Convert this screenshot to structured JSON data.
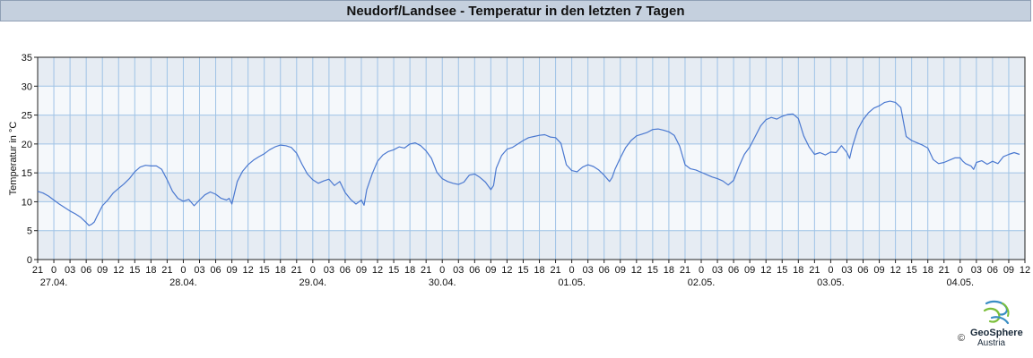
{
  "chart_data": {
    "type": "line",
    "title": "Neudorf/Landsee - Temperatur in den letzten 7 Tagen",
    "ylabel": "Temperatur in °C",
    "xlabel": "",
    "ylim": [
      0,
      35
    ],
    "yticks": [
      0,
      5,
      10,
      15,
      20,
      25,
      30,
      35
    ],
    "x_unit": "hours",
    "xlim": [
      0,
      183
    ],
    "xtick_labels": [
      "21",
      "0",
      "03",
      "06",
      "09",
      "12",
      "15",
      "18",
      "21",
      "0",
      "03",
      "06",
      "09",
      "12",
      "15",
      "18",
      "21",
      "0",
      "03",
      "06",
      "09",
      "12",
      "15",
      "18",
      "21",
      "0",
      "03",
      "06",
      "09",
      "12",
      "15",
      "18",
      "21",
      "0",
      "03",
      "06",
      "09",
      "12",
      "15",
      "18",
      "21",
      "0",
      "03",
      "06",
      "09",
      "12",
      "15",
      "18",
      "21",
      "0",
      "03",
      "06",
      "09",
      "12",
      "15",
      "18",
      "21",
      "0",
      "03",
      "06",
      "09",
      "12"
    ],
    "date_labels": [
      {
        "hour": 3,
        "label": "27.04."
      },
      {
        "hour": 27,
        "label": "28.04."
      },
      {
        "hour": 51,
        "label": "29.04."
      },
      {
        "hour": 75,
        "label": "30.04."
      },
      {
        "hour": 99,
        "label": "01.05."
      },
      {
        "hour": 123,
        "label": "02.05."
      },
      {
        "hour": 147,
        "label": "03.05."
      },
      {
        "hour": 171,
        "label": "04.05."
      }
    ],
    "grid": true,
    "legend": "none",
    "series": [
      {
        "color": "#4a78d0",
        "points": [
          [
            0,
            11.8
          ],
          [
            1,
            11.5
          ],
          [
            2,
            11.0
          ],
          [
            3,
            10.3
          ],
          [
            4,
            9.6
          ],
          [
            5,
            9.0
          ],
          [
            6,
            8.4
          ],
          [
            7,
            7.9
          ],
          [
            8,
            7.3
          ],
          [
            9,
            6.4
          ],
          [
            9.5,
            5.9
          ],
          [
            10,
            6.1
          ],
          [
            10.5,
            6.5
          ],
          [
            11,
            7.5
          ],
          [
            12,
            9.3
          ],
          [
            13,
            10.3
          ],
          [
            14,
            11.5
          ],
          [
            15,
            12.3
          ],
          [
            16,
            13.1
          ],
          [
            17,
            14.0
          ],
          [
            18,
            15.2
          ],
          [
            19,
            16.0
          ],
          [
            20,
            16.3
          ],
          [
            21,
            16.2
          ],
          [
            22,
            16.2
          ],
          [
            23,
            15.6
          ],
          [
            24,
            13.8
          ],
          [
            25,
            11.8
          ],
          [
            26,
            10.6
          ],
          [
            27,
            10.1
          ],
          [
            28,
            10.4
          ],
          [
            29,
            9.3
          ],
          [
            30,
            10.3
          ],
          [
            31,
            11.2
          ],
          [
            32,
            11.7
          ],
          [
            33,
            11.3
          ],
          [
            34,
            10.6
          ],
          [
            35,
            10.3
          ],
          [
            35.5,
            10.6
          ],
          [
            36,
            9.6
          ],
          [
            37,
            13.5
          ],
          [
            38,
            15.3
          ],
          [
            39,
            16.4
          ],
          [
            40,
            17.2
          ],
          [
            41,
            17.8
          ],
          [
            42,
            18.3
          ],
          [
            43,
            19.0
          ],
          [
            44,
            19.5
          ],
          [
            45,
            19.8
          ],
          [
            46,
            19.7
          ],
          [
            47,
            19.4
          ],
          [
            48,
            18.4
          ],
          [
            49,
            16.5
          ],
          [
            50,
            14.8
          ],
          [
            51,
            13.8
          ],
          [
            52,
            13.2
          ],
          [
            53,
            13.6
          ],
          [
            54,
            13.9
          ],
          [
            55,
            12.8
          ],
          [
            56,
            13.5
          ],
          [
            57,
            11.6
          ],
          [
            58,
            10.4
          ],
          [
            59,
            9.6
          ],
          [
            60,
            10.3
          ],
          [
            60.5,
            9.4
          ],
          [
            61,
            12.1
          ],
          [
            62,
            14.8
          ],
          [
            63,
            17.0
          ],
          [
            64,
            18.1
          ],
          [
            65,
            18.7
          ],
          [
            66,
            19.0
          ],
          [
            67,
            19.5
          ],
          [
            68,
            19.3
          ],
          [
            69,
            20.0
          ],
          [
            70,
            20.2
          ],
          [
            71,
            19.7
          ],
          [
            72,
            18.8
          ],
          [
            73,
            17.5
          ],
          [
            74,
            15.1
          ],
          [
            75,
            14.0
          ],
          [
            76,
            13.5
          ],
          [
            77,
            13.2
          ],
          [
            78,
            13.0
          ],
          [
            79,
            13.4
          ],
          [
            80,
            14.6
          ],
          [
            81,
            14.8
          ],
          [
            82,
            14.2
          ],
          [
            83,
            13.4
          ],
          [
            84,
            12.1
          ],
          [
            84.5,
            12.8
          ],
          [
            85,
            15.8
          ],
          [
            86,
            18.0
          ],
          [
            87,
            19.1
          ],
          [
            88,
            19.4
          ],
          [
            89,
            20.0
          ],
          [
            90,
            20.6
          ],
          [
            91,
            21.1
          ],
          [
            92,
            21.3
          ],
          [
            93,
            21.5
          ],
          [
            94,
            21.6
          ],
          [
            95,
            21.2
          ],
          [
            96,
            21.1
          ],
          [
            97,
            20.1
          ],
          [
            98,
            16.4
          ],
          [
            99,
            15.4
          ],
          [
            100,
            15.2
          ],
          [
            101,
            16.0
          ],
          [
            102,
            16.4
          ],
          [
            103,
            16.1
          ],
          [
            104,
            15.5
          ],
          [
            105,
            14.6
          ],
          [
            106,
            13.5
          ],
          [
            106.5,
            14.2
          ],
          [
            107,
            15.6
          ],
          [
            108,
            17.6
          ],
          [
            109,
            19.4
          ],
          [
            110,
            20.6
          ],
          [
            111,
            21.4
          ],
          [
            112,
            21.7
          ],
          [
            113,
            22.0
          ],
          [
            114,
            22.5
          ],
          [
            115,
            22.6
          ],
          [
            116,
            22.4
          ],
          [
            117,
            22.1
          ],
          [
            118,
            21.5
          ],
          [
            119,
            19.6
          ],
          [
            120,
            16.4
          ],
          [
            121,
            15.7
          ],
          [
            122,
            15.5
          ],
          [
            123,
            15.1
          ],
          [
            124,
            14.7
          ],
          [
            125,
            14.3
          ],
          [
            126,
            14.0
          ],
          [
            127,
            13.6
          ],
          [
            128,
            12.9
          ],
          [
            129,
            13.7
          ],
          [
            130,
            16.1
          ],
          [
            131,
            18.2
          ],
          [
            132,
            19.5
          ],
          [
            133,
            21.3
          ],
          [
            134,
            23.1
          ],
          [
            135,
            24.2
          ],
          [
            136,
            24.6
          ],
          [
            137,
            24.3
          ],
          [
            138,
            24.8
          ],
          [
            139,
            25.1
          ],
          [
            140,
            25.2
          ],
          [
            141,
            24.4
          ],
          [
            142,
            21.4
          ],
          [
            143,
            19.5
          ],
          [
            144,
            18.2
          ],
          [
            145,
            18.5
          ],
          [
            146,
            18.1
          ],
          [
            147,
            18.6
          ],
          [
            148,
            18.5
          ],
          [
            149,
            19.7
          ],
          [
            150,
            18.5
          ],
          [
            150.5,
            17.5
          ],
          [
            151,
            19.5
          ],
          [
            152,
            22.5
          ],
          [
            153,
            24.2
          ],
          [
            154,
            25.4
          ],
          [
            155,
            26.2
          ],
          [
            156,
            26.6
          ],
          [
            157,
            27.2
          ],
          [
            158,
            27.4
          ],
          [
            159,
            27.2
          ],
          [
            160,
            26.3
          ],
          [
            161,
            21.3
          ],
          [
            162,
            20.6
          ],
          [
            163,
            20.2
          ],
          [
            164,
            19.8
          ],
          [
            165,
            19.3
          ],
          [
            166,
            17.3
          ],
          [
            167,
            16.6
          ],
          [
            168,
            16.8
          ],
          [
            169,
            17.2
          ],
          [
            170,
            17.6
          ],
          [
            171,
            17.6
          ],
          [
            171.5,
            17.0
          ],
          [
            172,
            16.6
          ],
          [
            173,
            16.2
          ],
          [
            173.5,
            15.6
          ],
          [
            174,
            16.8
          ],
          [
            175,
            17.1
          ],
          [
            176,
            16.5
          ],
          [
            177,
            17.0
          ],
          [
            178,
            16.6
          ],
          [
            179,
            17.8
          ],
          [
            180,
            18.2
          ],
          [
            181,
            18.5
          ],
          [
            182,
            18.2
          ]
        ]
      }
    ]
  },
  "logo": {
    "name": "GeoSphere",
    "sub": "Austria",
    "copyright": "©"
  }
}
